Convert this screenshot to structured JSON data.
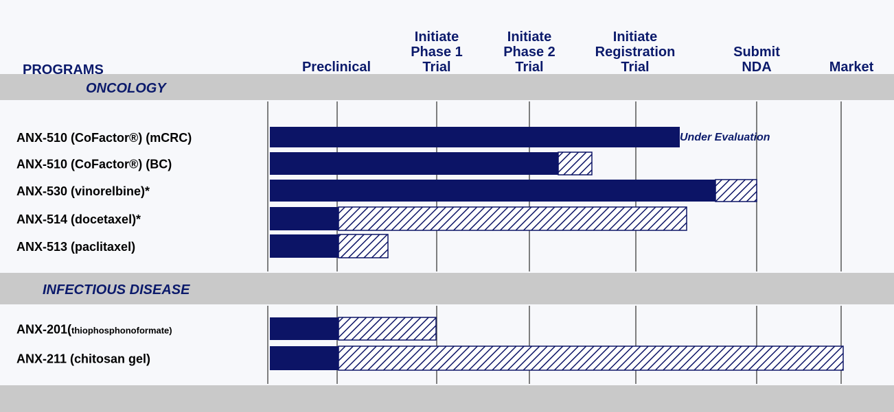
{
  "header": {
    "programs": "PROGRAMS",
    "stages": [
      [
        "Preclinical"
      ],
      [
        "Initiate",
        "Phase 1",
        "Trial"
      ],
      [
        "Initiate",
        "Phase 2",
        "Trial"
      ],
      [
        "Initiate",
        "Registration",
        "Trial"
      ],
      [
        "Submit",
        "NDA"
      ],
      [
        "Market"
      ]
    ]
  },
  "sections": [
    {
      "title": "ONCOLOGY",
      "rows": [
        {
          "label": "ANX-510 (CoFactor®) (mCRC)",
          "note": "Under Evaluation"
        },
        {
          "label": "ANX-510 (CoFactor®) (BC)"
        },
        {
          "label": "ANX-530 (vinorelbine)*"
        },
        {
          "label": "ANX-514 (docetaxel)*"
        },
        {
          "label": "ANX-513 (paclitaxel)"
        }
      ]
    },
    {
      "title": "INFECTIOUS DISEASE",
      "rows": [
        {
          "label": "ANX-201(",
          "label_small": "thiophosphonoformate)"
        },
        {
          "label": "ANX-211 (chitosan gel)"
        }
      ]
    }
  ]
}
